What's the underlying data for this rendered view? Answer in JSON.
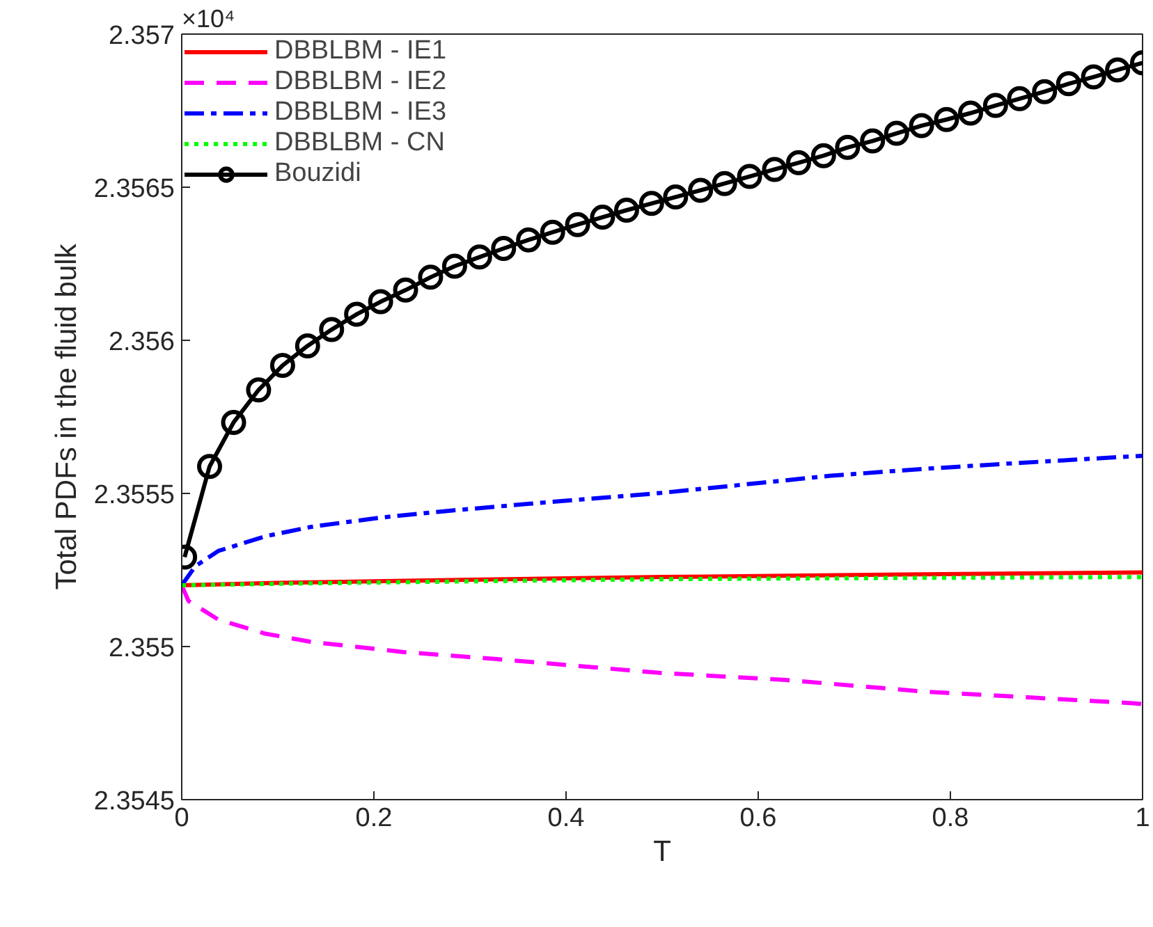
{
  "chart_data": {
    "type": "line",
    "xlabel": "T",
    "ylabel": "Total PDFs in the fluid bulk",
    "annotations": [
      "×10⁴"
    ],
    "xlim": [
      0,
      1
    ],
    "xticks": [
      0,
      0.2,
      0.4,
      0.6,
      0.8,
      1
    ],
    "ylim": [
      2.3545,
      2.357
    ],
    "yticks": [
      2.3545,
      2.355,
      2.3555,
      2.356,
      2.3565,
      2.357
    ],
    "grid": false,
    "legend": "top left",
    "series": [
      {
        "name": "DBBLBM - IE1",
        "color": "#ff0000",
        "line_style": "solid",
        "marker": "none",
        "x": [
          0,
          0.1,
          0.3,
          0.5,
          0.75,
          1
        ],
        "values": [
          2.3552,
          2.355208,
          2.355218,
          2.355227,
          2.355235,
          2.355242
        ]
      },
      {
        "name": "DBBLBM - IE2",
        "color": "#ff00ff",
        "line_style": "dashed",
        "marker": "none",
        "x": [
          0,
          0.007,
          0.038,
          0.087,
          0.135,
          0.231,
          0.328,
          0.497,
          0.628,
          0.772,
          0.99,
          1
        ],
        "values": [
          2.3552,
          2.355149,
          2.355088,
          2.355042,
          2.355015,
          2.354982,
          2.354959,
          2.354914,
          2.354891,
          2.354853,
          2.354815,
          2.354812
        ]
      },
      {
        "name": "DBBLBM - IE3",
        "color": "#0000ff",
        "line_style": "dashdot",
        "marker": "none",
        "x": [
          0,
          0.014,
          0.038,
          0.087,
          0.135,
          0.207,
          0.28,
          0.376,
          0.497,
          0.579,
          0.676,
          0.772,
          0.869,
          1
        ],
        "values": [
          2.3552,
          2.355262,
          2.355312,
          2.35536,
          2.355391,
          2.355421,
          2.355444,
          2.35547,
          2.355501,
          2.355527,
          2.355558,
          2.35558,
          2.355599,
          2.355623
        ]
      },
      {
        "name": "DBBLBM - CN",
        "color": "#00ff00",
        "line_style": "dotted",
        "marker": "none",
        "x": [
          0,
          0.1,
          0.3,
          0.5,
          0.75,
          1
        ],
        "values": [
          2.3552,
          2.355205,
          2.355213,
          2.35522,
          2.355224,
          2.355227
        ]
      },
      {
        "name": "Bouzidi",
        "color": "#000000",
        "line_style": "solid",
        "marker": "circle",
        "x": [
          0.003,
          0.029,
          0.054,
          0.08,
          0.105,
          0.131,
          0.156,
          0.182,
          0.207,
          0.233,
          0.259,
          0.284,
          0.31,
          0.335,
          0.361,
          0.386,
          0.412,
          0.438,
          0.463,
          0.489,
          0.514,
          0.54,
          0.565,
          0.591,
          0.617,
          0.642,
          0.668,
          0.693,
          0.719,
          0.744,
          0.77,
          0.796,
          0.821,
          0.847,
          0.872,
          0.898,
          0.923,
          0.949,
          0.974,
          1.0
        ],
        "values": [
          2.355292,
          2.355588,
          2.355732,
          2.355838,
          2.355918,
          2.355982,
          2.356035,
          2.356085,
          2.356126,
          2.356164,
          2.356206,
          2.356242,
          2.356272,
          2.3563,
          2.356328,
          2.356353,
          2.356378,
          2.356402,
          2.356425,
          2.356447,
          2.356468,
          2.35649,
          2.356512,
          2.356535,
          2.356558,
          2.35658,
          2.356603,
          2.35663,
          2.356651,
          2.356676,
          2.356701,
          2.356721,
          2.356742,
          2.356767,
          2.356789,
          2.356812,
          2.356838,
          2.35686,
          2.356883,
          2.356906
        ]
      }
    ]
  }
}
